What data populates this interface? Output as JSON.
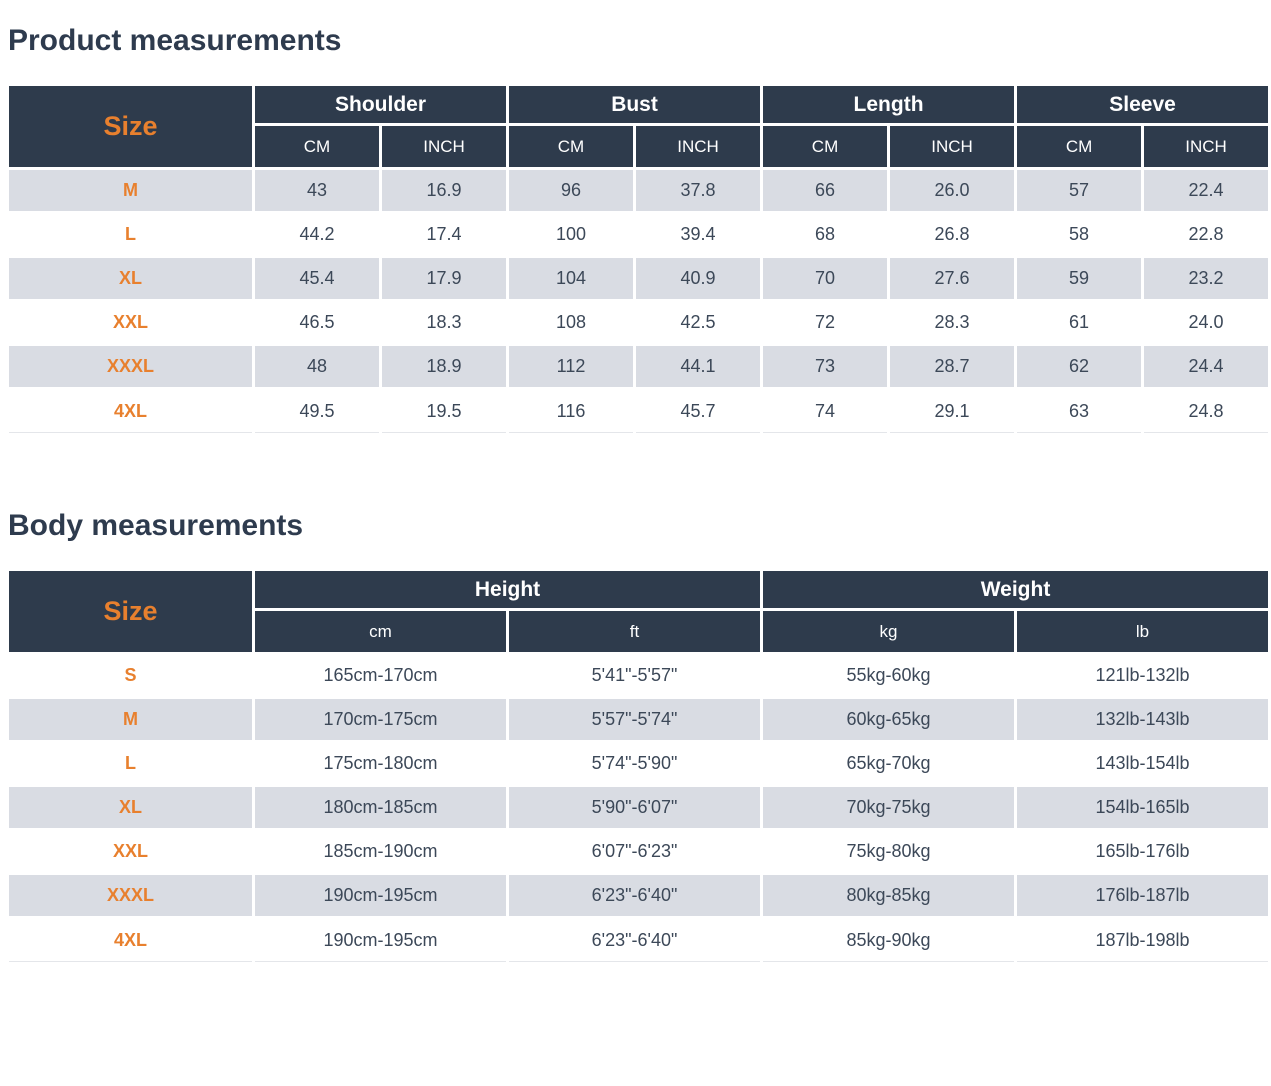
{
  "colors": {
    "header_bg": "#2e3b4c",
    "accent_orange": "#e8802e",
    "shaded_row": "#d9dce3",
    "data_text": "#3c4858",
    "title_text": "#2e3b4e"
  },
  "product_table": {
    "title": "Product measurements",
    "size_header": "Size",
    "group_headers": [
      "Shoulder",
      "Bust",
      "Length",
      "Sleeve"
    ],
    "unit_labels": [
      "CM",
      "INCH"
    ],
    "rows": [
      {
        "size": "M",
        "shaded": true,
        "values": [
          "43",
          "16.9",
          "96",
          "37.8",
          "66",
          "26.0",
          "57",
          "22.4"
        ]
      },
      {
        "size": "L",
        "shaded": false,
        "values": [
          "44.2",
          "17.4",
          "100",
          "39.4",
          "68",
          "26.8",
          "58",
          "22.8"
        ]
      },
      {
        "size": "XL",
        "shaded": true,
        "values": [
          "45.4",
          "17.9",
          "104",
          "40.9",
          "70",
          "27.6",
          "59",
          "23.2"
        ]
      },
      {
        "size": "XXL",
        "shaded": false,
        "values": [
          "46.5",
          "18.3",
          "108",
          "42.5",
          "72",
          "28.3",
          "61",
          "24.0"
        ]
      },
      {
        "size": "XXXL",
        "shaded": true,
        "values": [
          "48",
          "18.9",
          "112",
          "44.1",
          "73",
          "28.7",
          "62",
          "24.4"
        ]
      },
      {
        "size": "4XL",
        "shaded": false,
        "values": [
          "49.5",
          "19.5",
          "116",
          "45.7",
          "74",
          "29.1",
          "63",
          "24.8"
        ]
      }
    ]
  },
  "body_table": {
    "title": "Body measurements",
    "size_header": "Size",
    "group_headers": [
      "Height",
      "Weight"
    ],
    "unit_labels": [
      "cm",
      "ft",
      "kg",
      "lb"
    ],
    "rows": [
      {
        "size": "S",
        "shaded": false,
        "values": [
          "165cm-170cm",
          "5'41\"-5'57\"",
          "55kg-60kg",
          "121lb-132lb"
        ]
      },
      {
        "size": "M",
        "shaded": true,
        "values": [
          "170cm-175cm",
          "5'57\"-5'74\"",
          "60kg-65kg",
          "132lb-143lb"
        ]
      },
      {
        "size": "L",
        "shaded": false,
        "values": [
          "175cm-180cm",
          "5'74\"-5'90\"",
          "65kg-70kg",
          "143lb-154lb"
        ]
      },
      {
        "size": "XL",
        "shaded": true,
        "values": [
          "180cm-185cm",
          "5'90\"-6'07\"",
          "70kg-75kg",
          "154lb-165lb"
        ]
      },
      {
        "size": "XXL",
        "shaded": false,
        "values": [
          "185cm-190cm",
          "6'07\"-6'23\"",
          "75kg-80kg",
          "165lb-176lb"
        ]
      },
      {
        "size": "XXXL",
        "shaded": true,
        "values": [
          "190cm-195cm",
          "6'23\"-6'40\"",
          "80kg-85kg",
          "176lb-187lb"
        ]
      },
      {
        "size": "4XL",
        "shaded": false,
        "values": [
          "190cm-195cm",
          "6'23\"-6'40\"",
          "85kg-90kg",
          "187lb-198lb"
        ]
      }
    ]
  }
}
